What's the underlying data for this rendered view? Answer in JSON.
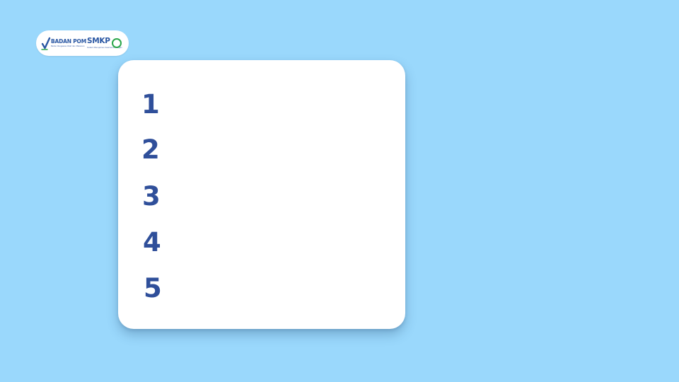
{
  "colors": {
    "background": "#9ad8fc",
    "card": "#ffffff",
    "number": "#2f4f9a",
    "logo_blue": "#2a57a3",
    "logo_green": "#2aa64a"
  },
  "logo": {
    "badan_text": "BADAN POM",
    "badan_sub": "Badan Pengawas Obat dan Makanan",
    "smkp_text": "SMKP",
    "smkp_sub": "Sistem Manajemen Keamanan Pangan",
    "icons": [
      "badan-pom-emblem-icon",
      "smkp-ring-icon"
    ]
  },
  "list": {
    "numbers": [
      "1",
      "2",
      "3",
      "4",
      "5"
    ]
  }
}
